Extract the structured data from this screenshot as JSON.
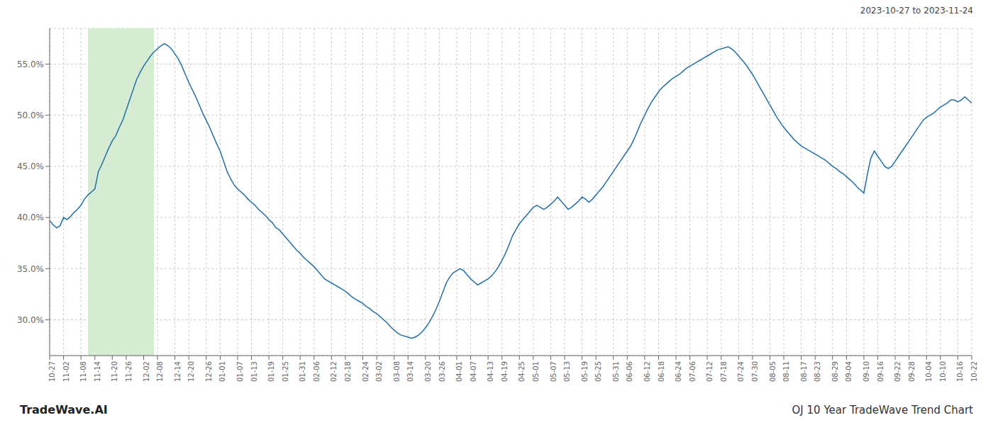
{
  "chart_data": {
    "type": "line",
    "title": "OJ 10 Year TradeWave Trend Chart",
    "subtitle": "2023-10-27 to 2023-11-24",
    "annotations": [
      "TradeWave.AI"
    ],
    "color": "#1f6fab",
    "grid": true,
    "highlight": {
      "x": [
        11,
        30
      ],
      "color": "#d6ecd2"
    },
    "ylim": [
      0.265,
      0.585
    ],
    "yticks": [
      {
        "value": 0.3,
        "label": "30.0%"
      },
      {
        "value": 0.35,
        "label": "35.0%"
      },
      {
        "value": 0.4,
        "label": "40.0%"
      },
      {
        "value": 0.45,
        "label": "45.0%"
      },
      {
        "value": 0.5,
        "label": "50.0%"
      },
      {
        "value": 0.55,
        "label": "55.0%"
      }
    ],
    "categories": [
      "10-27",
      null,
      null,
      null,
      "11-02",
      null,
      null,
      null,
      null,
      "11-08",
      null,
      null,
      null,
      "11-14",
      null,
      null,
      null,
      null,
      "11-20",
      null,
      null,
      null,
      "11-26",
      null,
      null,
      null,
      null,
      "12-02",
      null,
      null,
      null,
      "12-08",
      null,
      null,
      null,
      null,
      "12-14",
      null,
      null,
      null,
      "12-20",
      null,
      null,
      null,
      null,
      "12-26",
      null,
      null,
      null,
      "01-01",
      null,
      null,
      null,
      null,
      "01-07",
      null,
      null,
      null,
      "01-13",
      null,
      null,
      null,
      null,
      "01-19",
      null,
      null,
      null,
      "01-25",
      null,
      null,
      null,
      null,
      "01-31",
      null,
      null,
      null,
      "02-06",
      null,
      null,
      null,
      null,
      "02-12",
      null,
      null,
      null,
      "02-18",
      null,
      null,
      null,
      null,
      "02-24",
      null,
      null,
      null,
      "03-02",
      null,
      null,
      null,
      null,
      "03-08",
      null,
      null,
      null,
      "03-14",
      null,
      null,
      null,
      null,
      "03-20",
      null,
      null,
      null,
      "03-26",
      null,
      null,
      null,
      null,
      "04-01",
      null,
      null,
      null,
      "04-07",
      null,
      null,
      null,
      null,
      "04-13",
      null,
      null,
      null,
      "04-19",
      null,
      null,
      null,
      null,
      "04-25",
      null,
      null,
      null,
      "05-01",
      null,
      null,
      null,
      null,
      "05-07",
      null,
      null,
      null,
      "05-13",
      null,
      null,
      null,
      null,
      "05-19",
      null,
      null,
      null,
      "05-25",
      null,
      null,
      null,
      null,
      "05-31",
      null,
      null,
      null,
      "06-06",
      null,
      null,
      null,
      null,
      "06-12",
      null,
      null,
      null,
      "06-18",
      null,
      null,
      null,
      null,
      "06-24",
      null,
      null,
      null,
      "07-06",
      null,
      null,
      null,
      null,
      "07-12",
      null,
      null,
      null,
      "07-18",
      null,
      null,
      null,
      null,
      "07-24",
      null,
      null,
      null,
      "07-30",
      null,
      null,
      null,
      null,
      "08-05",
      null,
      null,
      null,
      "08-11",
      null,
      null,
      null,
      null,
      "08-17",
      null,
      null,
      null,
      "08-23",
      null,
      null,
      null,
      null,
      "08-29",
      null,
      null,
      null,
      "09-04",
      null,
      null,
      null,
      null,
      "09-10",
      null,
      null,
      null,
      "09-16",
      null,
      null,
      null,
      null,
      "09-22",
      null,
      null,
      null,
      "09-28",
      null,
      null,
      null,
      null,
      "10-04",
      null,
      null,
      null,
      "10-10",
      null,
      null,
      null,
      null,
      "10-16",
      null,
      null,
      null,
      "10-22"
    ],
    "values": [
      0.397,
      0.393,
      0.39,
      0.392,
      0.4,
      0.398,
      0.401,
      0.405,
      0.408,
      0.412,
      0.418,
      0.422,
      0.425,
      0.428,
      0.445,
      0.452,
      0.46,
      0.468,
      0.475,
      0.48,
      0.488,
      0.495,
      0.505,
      0.515,
      0.525,
      0.535,
      0.542,
      0.548,
      0.553,
      0.558,
      0.562,
      0.565,
      0.568,
      0.57,
      0.568,
      0.565,
      0.56,
      0.555,
      0.548,
      0.54,
      0.532,
      0.525,
      0.518,
      0.51,
      0.502,
      0.495,
      0.488,
      0.48,
      0.472,
      0.465,
      0.455,
      0.445,
      0.438,
      0.432,
      0.428,
      0.425,
      0.422,
      0.418,
      0.415,
      0.412,
      0.408,
      0.405,
      0.402,
      0.398,
      0.395,
      0.39,
      0.388,
      0.384,
      0.38,
      0.376,
      0.372,
      0.368,
      0.365,
      0.361,
      0.358,
      0.355,
      0.352,
      0.348,
      0.344,
      0.34,
      0.338,
      0.336,
      0.334,
      0.332,
      0.33,
      0.328,
      0.325,
      0.322,
      0.32,
      0.318,
      0.316,
      0.313,
      0.311,
      0.308,
      0.306,
      0.303,
      0.3,
      0.297,
      0.293,
      0.29,
      0.287,
      0.285,
      0.284,
      0.283,
      0.282,
      0.283,
      0.285,
      0.288,
      0.292,
      0.297,
      0.303,
      0.31,
      0.318,
      0.327,
      0.336,
      0.342,
      0.346,
      0.348,
      0.35,
      0.348,
      0.344,
      0.34,
      0.337,
      0.334,
      0.336,
      0.338,
      0.34,
      0.343,
      0.347,
      0.352,
      0.358,
      0.365,
      0.373,
      0.382,
      0.388,
      0.394,
      0.398,
      0.402,
      0.406,
      0.41,
      0.412,
      0.41,
      0.408,
      0.41,
      0.413,
      0.416,
      0.42,
      0.416,
      0.412,
      0.408,
      0.41,
      0.413,
      0.416,
      0.42,
      0.418,
      0.415,
      0.418,
      0.422,
      0.426,
      0.43,
      0.435,
      0.44,
      0.445,
      0.45,
      0.455,
      0.46,
      0.465,
      0.47,
      0.477,
      0.485,
      0.493,
      0.5,
      0.507,
      0.513,
      0.518,
      0.523,
      0.527,
      0.53,
      0.533,
      0.536,
      0.538,
      0.54,
      0.543,
      0.546,
      0.548,
      0.55,
      0.552,
      0.554,
      0.556,
      0.558,
      0.56,
      0.562,
      0.564,
      0.565,
      0.566,
      0.567,
      0.565,
      0.562,
      0.558,
      0.554,
      0.55,
      0.545,
      0.54,
      0.534,
      0.528,
      0.522,
      0.516,
      0.51,
      0.504,
      0.498,
      0.493,
      0.488,
      0.484,
      0.48,
      0.476,
      0.473,
      0.47,
      0.468,
      0.466,
      0.464,
      0.462,
      0.46,
      0.458,
      0.456,
      0.453,
      0.45,
      0.448,
      0.445,
      0.443,
      0.44,
      0.437,
      0.434,
      0.43,
      0.427,
      0.424,
      0.442,
      0.458,
      0.465,
      0.46,
      0.455,
      0.45,
      0.448,
      0.45,
      0.455,
      0.46,
      0.465,
      0.47,
      0.475,
      0.48,
      0.485,
      0.49,
      0.495,
      0.498,
      0.5,
      0.502,
      0.505,
      0.508,
      0.51,
      0.512,
      0.515,
      0.515,
      0.513,
      0.515,
      0.518,
      0.515,
      0.512
    ]
  }
}
